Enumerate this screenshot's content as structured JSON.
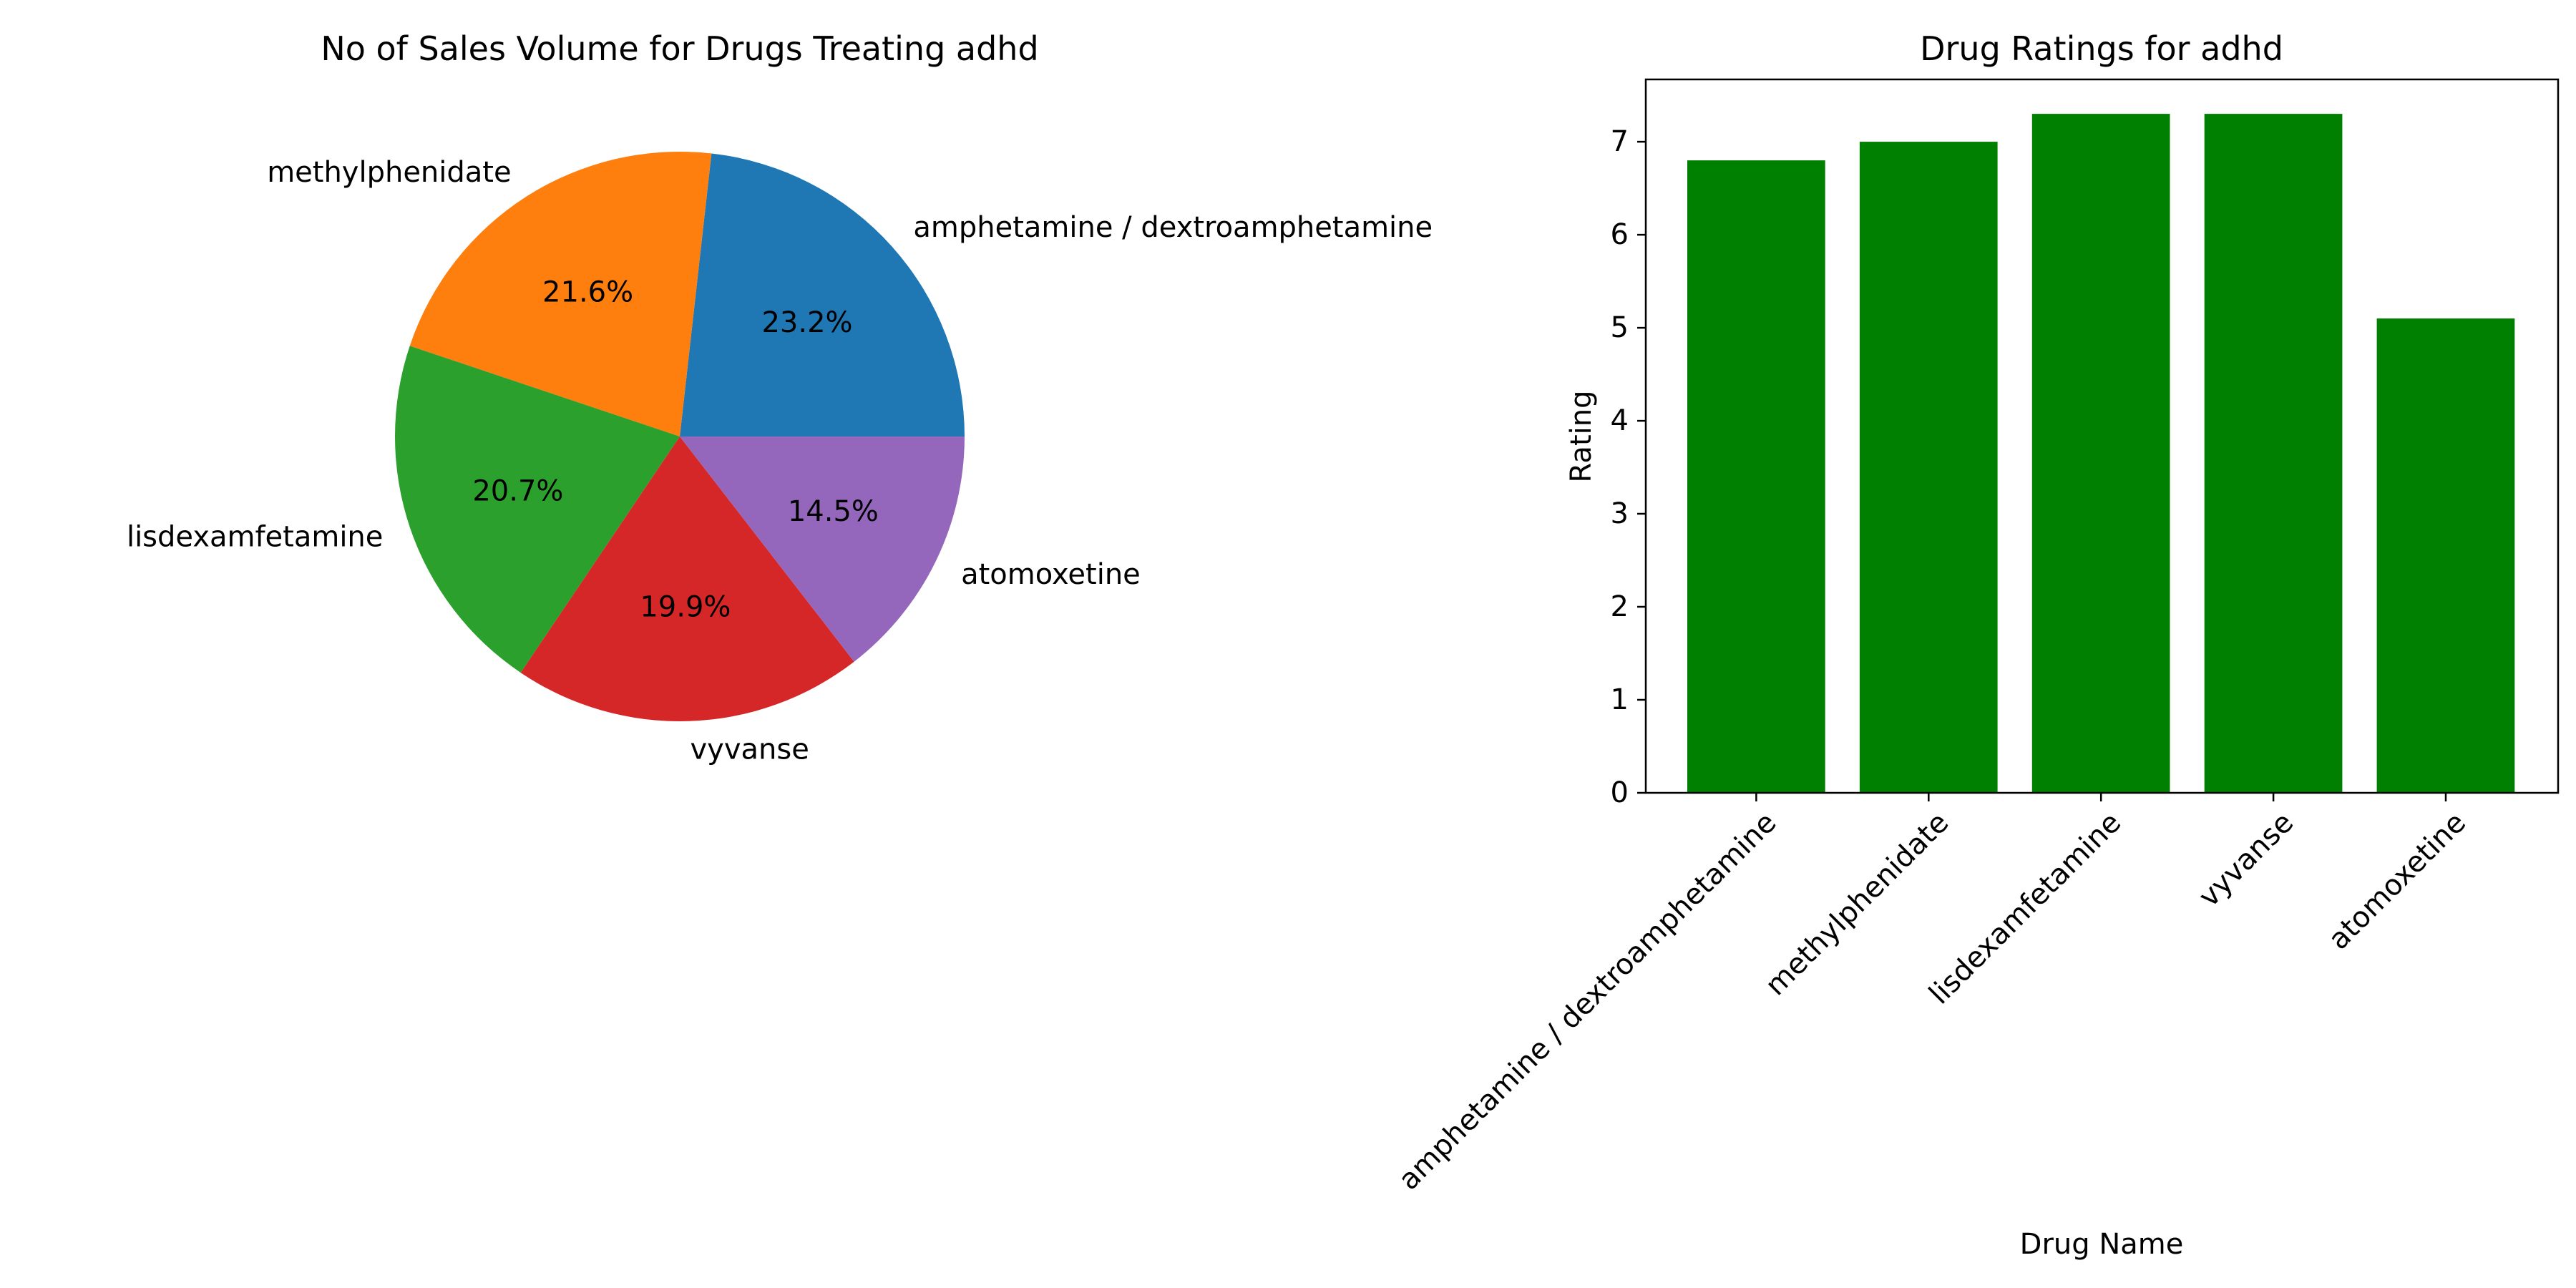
{
  "chart_data": [
    {
      "type": "pie",
      "title": "No of Sales Volume for Drugs Treating adhd",
      "labels": [
        "amphetamine / dextroamphetamine",
        "methylphenidate",
        "lisdexamfetamine",
        "vyvanse",
        "atomoxetine"
      ],
      "values": [
        23.2,
        21.6,
        20.7,
        19.9,
        14.5
      ],
      "percent_labels": [
        "23.2%",
        "21.6%",
        "20.7%",
        "19.9%",
        "14.5%"
      ],
      "colors": [
        "#1f77b4",
        "#ff7f0e",
        "#2ca02c",
        "#d62728",
        "#9467bd"
      ],
      "start_angle_deg": 0,
      "direction": "counterclockwise"
    },
    {
      "type": "bar",
      "title": "Drug Ratings for adhd",
      "categories": [
        "amphetamine / dextroamphetamine",
        "methylphenidate",
        "lisdexamfetamine",
        "vyvanse",
        "atomoxetine"
      ],
      "values": [
        6.8,
        7.0,
        7.3,
        7.3,
        5.1
      ],
      "xlabel": "Drug Name",
      "ylabel": "Rating",
      "ylim": [
        0,
        7.67
      ],
      "yticks": [
        0,
        1,
        2,
        3,
        4,
        5,
        6,
        7
      ],
      "bar_color": "#008000",
      "tick_label_rotation_deg": 45,
      "grid": false
    }
  ]
}
